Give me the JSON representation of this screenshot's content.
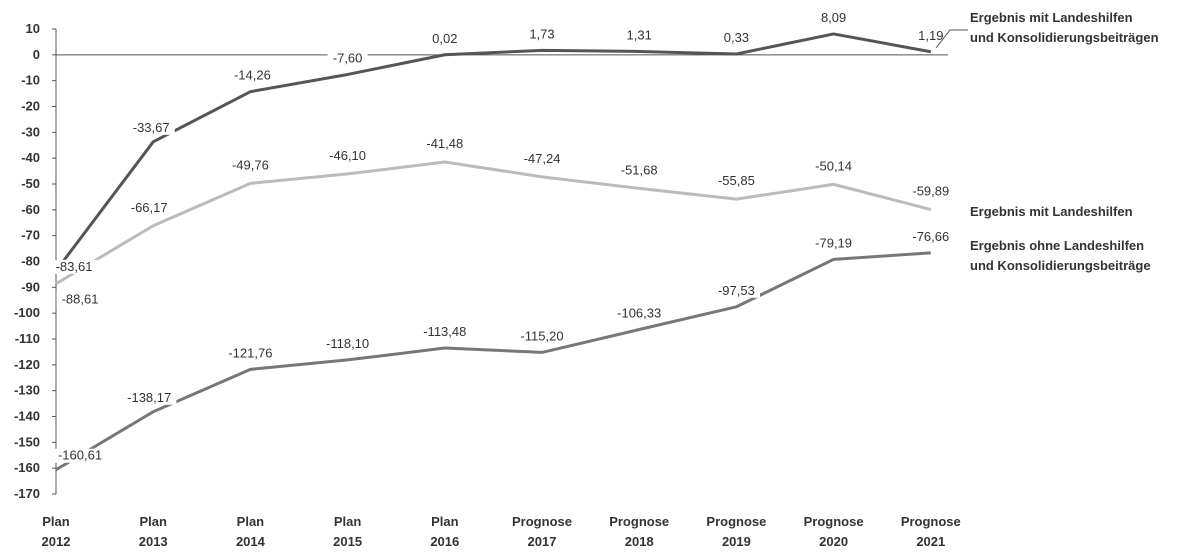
{
  "chart_data": {
    "type": "line",
    "title": "",
    "xlabel": "",
    "ylabel": "",
    "ylim": [
      -170,
      10
    ],
    "yticks": [
      10,
      0,
      -10,
      -20,
      -30,
      -40,
      -50,
      -60,
      -70,
      -80,
      -90,
      -100,
      -110,
      -120,
      -130,
      -140,
      -150,
      -160,
      -170
    ],
    "ytick_labels": [
      "10",
      "0",
      "-10",
      "-20",
      "-30",
      "-40",
      "-50",
      "-60",
      "-70",
      "-80",
      "-90",
      "-100",
      "-110",
      "-120",
      "-130",
      "-140",
      "-150",
      "-160",
      "-170"
    ],
    "categories": [
      [
        "Plan",
        "2012"
      ],
      [
        "Plan",
        "2013"
      ],
      [
        "Plan",
        "2014"
      ],
      [
        "Plan",
        "2015"
      ],
      [
        "Plan",
        "2016"
      ],
      [
        "Prognose",
        "2017"
      ],
      [
        "Prognose",
        "2018"
      ],
      [
        "Prognose",
        "2019"
      ],
      [
        "Prognose",
        "2020"
      ],
      [
        "Prognose",
        "2021"
      ]
    ],
    "grid": false,
    "legend_placement": "right",
    "series": [
      {
        "name": "Ergebnis mit Landeshilfen und Konsolidierungsbeiträgen",
        "legend_lines": [
          "Ergebnis mit Landeshilfen",
          "und Konsolidierungsbeiträgen"
        ],
        "color": "#555555",
        "values": [
          -83.61,
          -33.67,
          -14.26,
          -7.6,
          0.02,
          1.73,
          1.31,
          0.33,
          8.09,
          1.19
        ],
        "labels": [
          "-83,61",
          "-33,67",
          "-14,26",
          "-7,60",
          "0,02",
          "1,73",
          "1,31",
          "0,33",
          "8,09",
          "1,19"
        ]
      },
      {
        "name": "Ergebnis mit Landeshilfen",
        "legend_lines": [
          "Ergebnis mit Landeshilfen"
        ],
        "color": "#bbbbbb",
        "values": [
          -88.61,
          -66.17,
          -49.76,
          -46.1,
          -41.48,
          -47.24,
          -51.68,
          -55.85,
          -50.14,
          -59.89
        ],
        "labels": [
          "-88,61",
          "-66,17",
          "-49,76",
          "-46,10",
          "-41,48",
          "-47,24",
          "-51,68",
          "-55,85",
          "-50,14",
          "-59,89"
        ]
      },
      {
        "name": "Ergebnis ohne Landeshilfen und Konsolidierungsbeiträge",
        "legend_lines": [
          "Ergebnis ohne Landeshilfen",
          "und Konsolidierungsbeiträge"
        ],
        "color": "#777777",
        "values": [
          -160.61,
          -138.17,
          -121.76,
          -118.1,
          -113.48,
          -115.2,
          -106.33,
          -97.53,
          -79.19,
          -76.66
        ],
        "labels": [
          "-160,61",
          "-138,17",
          "-121,76",
          "-118,10",
          "-113,48",
          "-115,20",
          "-106,33",
          "-97,53",
          "-79,19",
          "-76,66"
        ]
      }
    ]
  }
}
